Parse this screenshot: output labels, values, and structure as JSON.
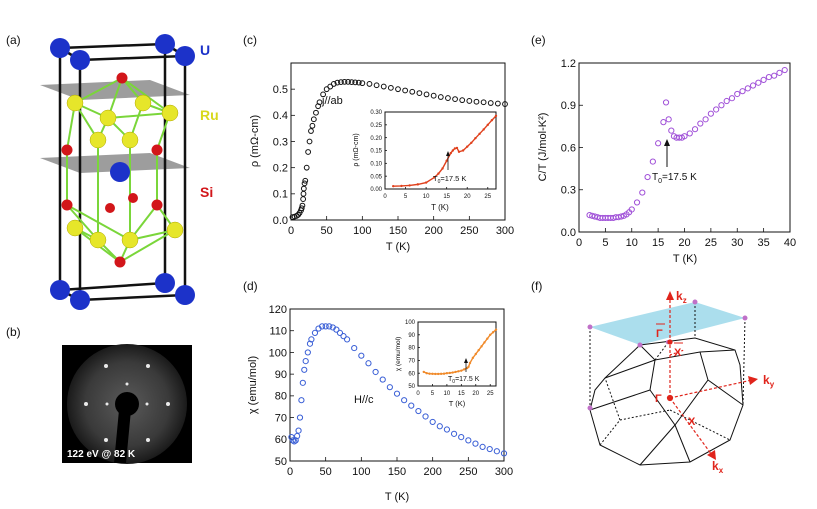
{
  "panels": {
    "a": "(a)",
    "b": "(b)",
    "c": "(c)",
    "d": "(d)",
    "e": "(e)",
    "f": "(f)"
  },
  "crystal": {
    "atom_labels": [
      "U",
      "Ru",
      "Si"
    ],
    "colors": {
      "U": "#1c32c9",
      "Ru": "#e6e62a",
      "Si": "#d2161a",
      "bond": "#7ad63a",
      "plane": "#8c8c8c"
    }
  },
  "leed": {
    "caption": "122 eV @ 82 K"
  },
  "bz": {
    "labels": {
      "kz": "k",
      "kz_sub": "z",
      "ky": "k",
      "ky_sub": "y",
      "kx": "k",
      "kx_sub": "x",
      "gamma_bar": "Γ",
      "x_bar": "X",
      "gamma": "Γ",
      "x": "X"
    },
    "colors": {
      "plane": "#9cd8ea",
      "arrows": "#e0241b",
      "corners": "#c070c8"
    }
  },
  "chart_data": [
    {
      "id": "c",
      "type": "scatter",
      "xlabel": "T (K)",
      "ylabel": "ρ (mΩ-cm)",
      "annotation": "j//ab",
      "xlim": [
        0,
        300
      ],
      "ylim": [
        0,
        0.6
      ],
      "xticks": [
        "0",
        "50",
        "100",
        "150",
        "200",
        "250",
        "300"
      ],
      "yticks": [
        "0.0",
        "0.1",
        "0.2",
        "0.3",
        "0.4",
        "0.5"
      ],
      "series": [
        {
          "marker": "open-circle",
          "color": "#111111",
          "x": [
            2,
            5,
            8,
            10,
            12,
            14,
            15,
            16,
            17,
            17.5,
            18,
            19,
            20,
            22,
            24,
            26,
            28,
            30,
            32,
            35,
            38,
            40,
            45,
            50,
            55,
            60,
            65,
            70,
            75,
            80,
            85,
            90,
            95,
            100,
            110,
            120,
            130,
            140,
            150,
            160,
            170,
            180,
            190,
            200,
            210,
            220,
            230,
            240,
            250,
            260,
            270,
            280,
            290,
            300
          ],
          "y": [
            0.011,
            0.013,
            0.016,
            0.02,
            0.027,
            0.037,
            0.045,
            0.055,
            0.08,
            0.1,
            0.12,
            0.14,
            0.15,
            0.2,
            0.26,
            0.3,
            0.34,
            0.36,
            0.385,
            0.41,
            0.435,
            0.45,
            0.48,
            0.5,
            0.51,
            0.52,
            0.525,
            0.527,
            0.528,
            0.528,
            0.527,
            0.526,
            0.525,
            0.523,
            0.52,
            0.515,
            0.51,
            0.505,
            0.5,
            0.495,
            0.49,
            0.485,
            0.48,
            0.475,
            0.47,
            0.466,
            0.462,
            0.458,
            0.455,
            0.452,
            0.45,
            0.447,
            0.445,
            0.443
          ]
        }
      ],
      "inset": {
        "xlabel": "T (K)",
        "ylabel": "ρ (mΩ-cm)",
        "annotation": "T",
        "annotation_sub": "0",
        "annotation_rest": "=17.5  K",
        "xlim": [
          0,
          27
        ],
        "ylim": [
          0,
          0.3
        ],
        "xticks": [
          "0",
          "5",
          "10",
          "15",
          "20",
          "25"
        ],
        "yticks": [
          "0.00",
          "0.05",
          "0.10",
          "0.15",
          "0.20",
          "0.25",
          "0.30"
        ],
        "series": [
          {
            "color": "#e0401c",
            "x": [
              2,
              4,
              6,
              8,
              10,
              12,
              13,
              14,
              15,
              16,
              16.5,
              17,
              17.5,
              18,
              19,
              20,
              21,
              22,
              23,
              24,
              25,
              26,
              27
            ],
            "y": [
              0.011,
              0.012,
              0.014,
              0.018,
              0.025,
              0.045,
              0.06,
              0.08,
              0.11,
              0.14,
              0.15,
              0.158,
              0.16,
              0.145,
              0.15,
              0.165,
              0.18,
              0.198,
              0.215,
              0.232,
              0.25,
              0.268,
              0.285
            ]
          }
        ]
      }
    },
    {
      "id": "d",
      "type": "scatter",
      "xlabel": "T (K)",
      "ylabel": "χ (emu/mol)",
      "annotation": "H//c",
      "xlim": [
        0,
        300
      ],
      "ylim": [
        50,
        120
      ],
      "xticks": [
        "0",
        "50",
        "100",
        "150",
        "200",
        "250",
        "300"
      ],
      "yticks": [
        "50",
        "60",
        "70",
        "80",
        "90",
        "100",
        "110",
        "120"
      ],
      "series": [
        {
          "marker": "open-circle",
          "color": "#3a5fd6",
          "x": [
            2,
            4,
            6,
            8,
            10,
            12,
            14,
            16,
            18,
            20,
            22,
            25,
            28,
            30,
            35,
            40,
            45,
            50,
            55,
            60,
            65,
            70,
            75,
            80,
            90,
            100,
            110,
            120,
            130,
            140,
            150,
            160,
            170,
            180,
            190,
            200,
            210,
            220,
            230,
            240,
            250,
            260,
            270,
            280,
            290,
            300
          ],
          "y": [
            61,
            59.5,
            59,
            59.5,
            61.5,
            64,
            70,
            78,
            86,
            92,
            96,
            100,
            104,
            106,
            109,
            111,
            112,
            112,
            112,
            111.5,
            110.5,
            109,
            107.5,
            106,
            102,
            98.5,
            95,
            91,
            87.5,
            84,
            81,
            78,
            75.5,
            73,
            70.5,
            68,
            66,
            64.5,
            62.5,
            61,
            59.5,
            58,
            56.5,
            55.5,
            54.5,
            53.5
          ]
        }
      ],
      "inset": {
        "xlabel": "T (K)",
        "ylabel": "χ (emu/mol)",
        "annotation": "T",
        "annotation_sub": "0",
        "annotation_rest": "=17.5  K",
        "xlim": [
          0,
          27
        ],
        "ylim": [
          50,
          100
        ],
        "xticks": [
          "0",
          "5",
          "10",
          "15",
          "20",
          "25"
        ],
        "yticks": [
          "50",
          "60",
          "70",
          "80",
          "90",
          "100"
        ],
        "series": [
          {
            "color": "#f08a2a",
            "x": [
              2,
              3,
              4,
              5,
              6,
              7,
              8,
              9,
              10,
              11,
              12,
              13,
              14,
              15,
              16,
              17,
              17.5,
              18,
              19,
              20,
              21,
              22,
              23,
              24,
              25,
              26,
              27
            ],
            "y": [
              61,
              60,
              59.6,
              59.5,
              59.4,
              59.4,
              59.5,
              59.6,
              60,
              60.2,
              60.5,
              61,
              61.5,
              62,
              63,
              64,
              65,
              68,
              72,
              75,
              78,
              81,
              84,
              87,
              90,
              92,
              94
            ]
          }
        ]
      }
    },
    {
      "id": "e",
      "type": "scatter",
      "xlabel": "T (K)",
      "ylabel": "C/T (J/mol-K²)",
      "annotation": "T",
      "annotation_sub": "0",
      "annotation_rest": "=17.5  K",
      "xlim": [
        0,
        40
      ],
      "ylim": [
        0,
        1.2
      ],
      "xticks": [
        "0",
        "5",
        "10",
        "15",
        "20",
        "25",
        "30",
        "35",
        "40"
      ],
      "yticks": [
        "0.0",
        "0.3",
        "0.6",
        "0.9",
        "1.2"
      ],
      "series": [
        {
          "marker": "open-circle",
          "color": "#a050d8",
          "x": [
            2,
            2.5,
            3,
            3.5,
            4,
            4.5,
            5,
            5.5,
            6,
            6.5,
            7,
            7.5,
            8,
            8.5,
            9,
            9.5,
            10,
            11,
            12,
            13,
            14,
            15,
            16,
            16.5,
            17,
            17.5,
            18,
            18.5,
            19,
            19.5,
            20,
            21,
            22,
            23,
            24,
            25,
            26,
            27,
            28,
            29,
            30,
            31,
            32,
            33,
            34,
            35,
            36,
            37,
            38,
            39
          ],
          "y": [
            0.12,
            0.115,
            0.11,
            0.105,
            0.1,
            0.1,
            0.1,
            0.1,
            0.1,
            0.1,
            0.105,
            0.105,
            0.11,
            0.115,
            0.125,
            0.14,
            0.16,
            0.21,
            0.28,
            0.39,
            0.5,
            0.63,
            0.78,
            0.92,
            0.8,
            0.72,
            0.68,
            0.67,
            0.67,
            0.67,
            0.68,
            0.7,
            0.73,
            0.77,
            0.8,
            0.84,
            0.87,
            0.9,
            0.93,
            0.95,
            0.98,
            1.0,
            1.02,
            1.04,
            1.06,
            1.08,
            1.1,
            1.11,
            1.13,
            1.15
          ]
        }
      ]
    }
  ]
}
